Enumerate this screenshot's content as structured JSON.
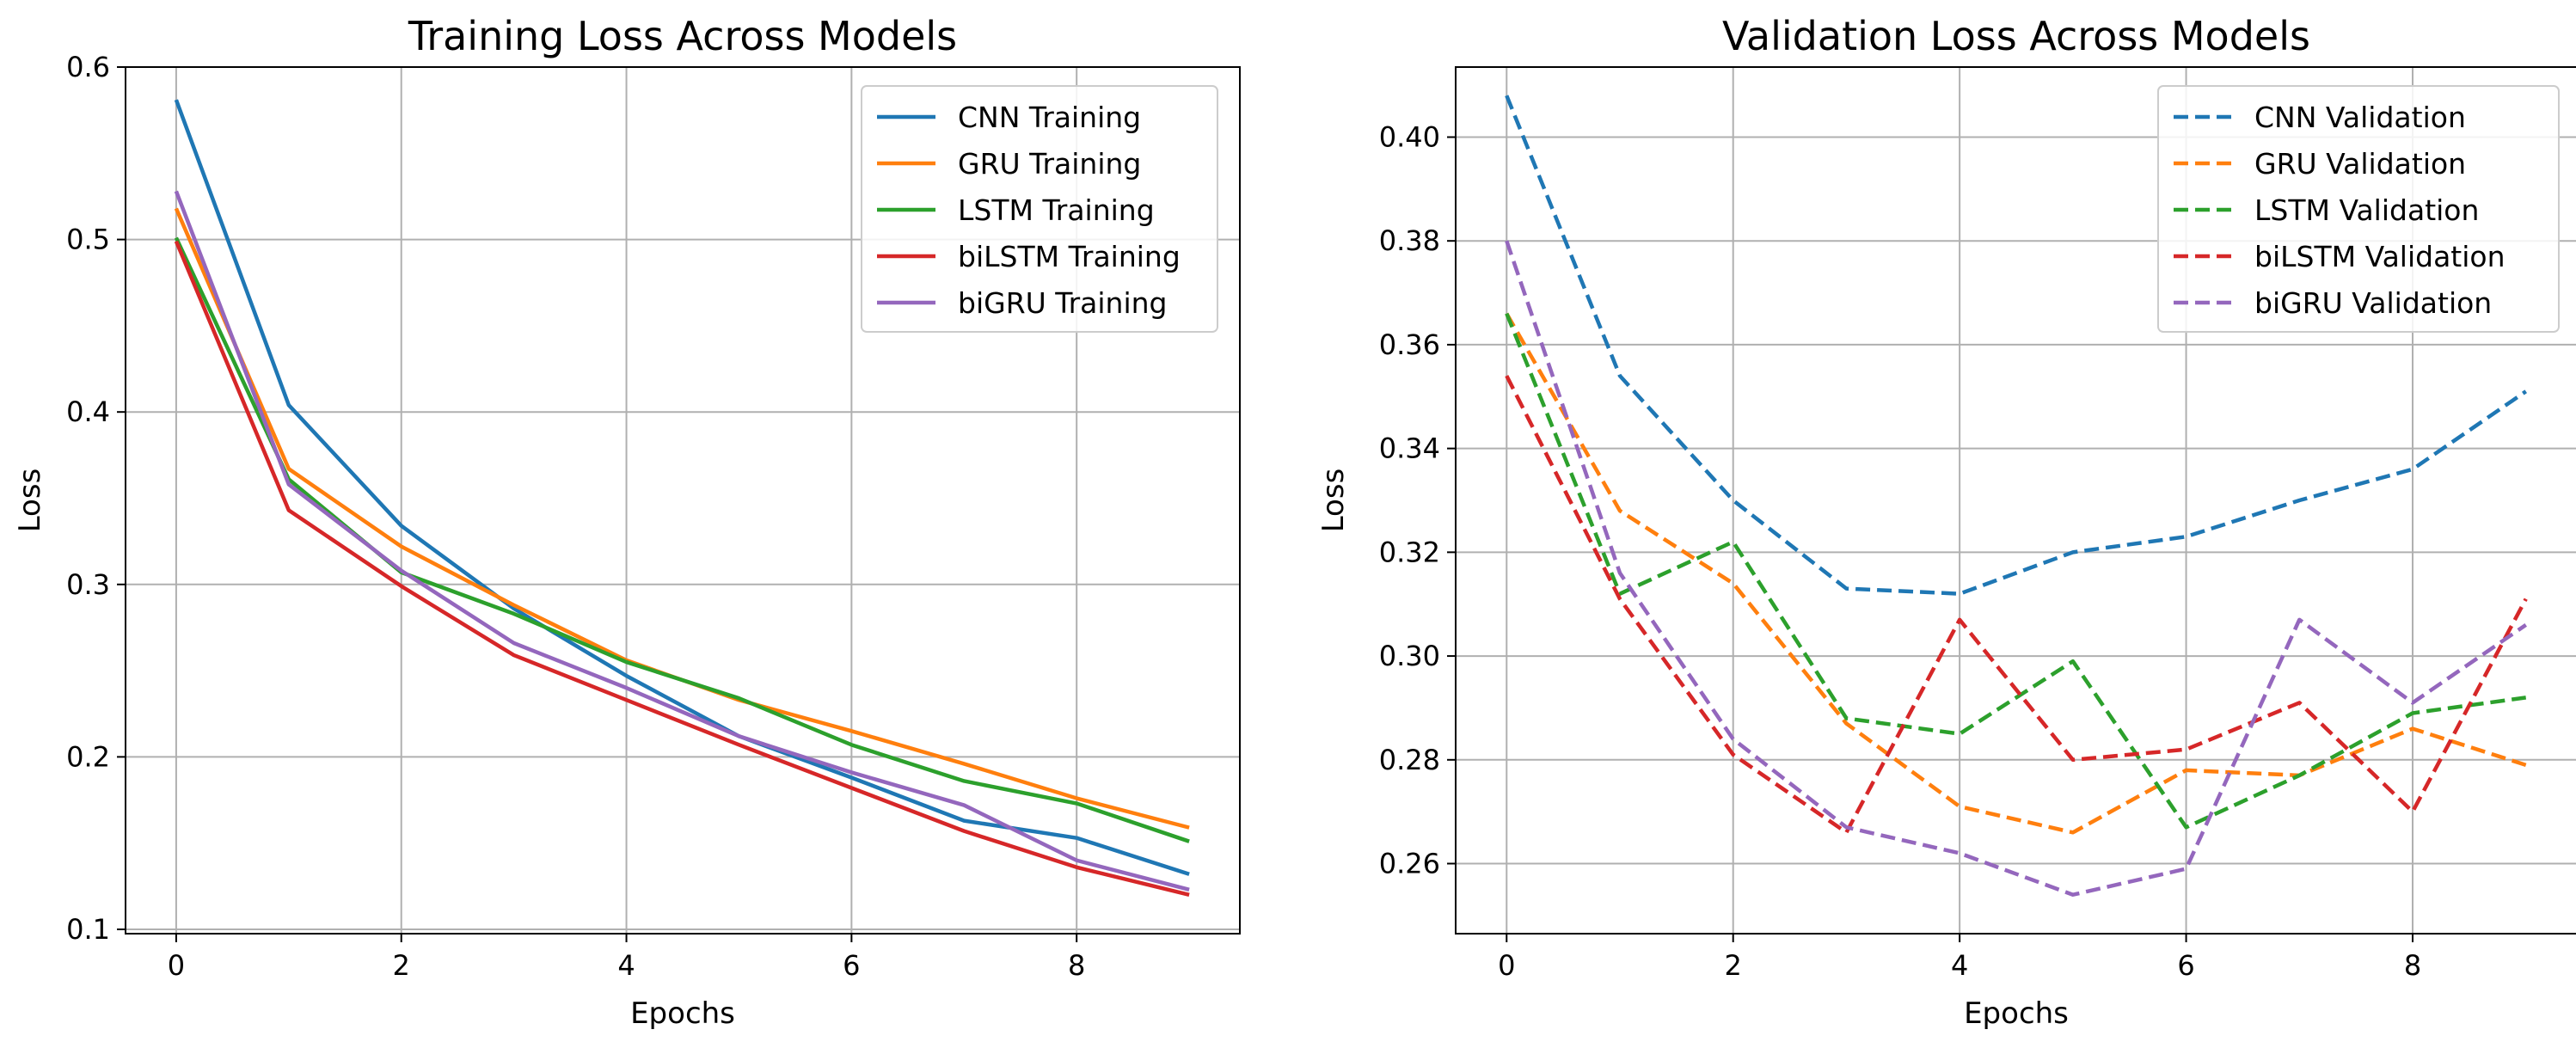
{
  "chart_data": [
    {
      "type": "line",
      "title": "Training Loss Across Models",
      "xlabel": "Epochs",
      "ylabel": "Loss",
      "xlim": [
        -0.45,
        9.45
      ],
      "ylim": [
        0.0975,
        0.6
      ],
      "xticks": [
        0,
        2,
        4,
        6,
        8
      ],
      "xtick_labels": [
        "0",
        "2",
        "4",
        "6",
        "8"
      ],
      "yticks": [
        0.1,
        0.2,
        0.3,
        0.4,
        0.5,
        0.6
      ],
      "ytick_labels": [
        "0.1",
        "0.2",
        "0.3",
        "0.4",
        "0.5",
        "0.6"
      ],
      "grid": true,
      "legend_position": "upper right",
      "x": [
        0,
        1,
        2,
        3,
        4,
        5,
        6,
        7,
        8,
        9
      ],
      "series": [
        {
          "name": "CNN Training",
          "color": "#1f77b4",
          "dash": "solid",
          "values": [
            0.581,
            0.404,
            0.334,
            0.286,
            0.247,
            0.212,
            0.188,
            0.163,
            0.153,
            0.132
          ]
        },
        {
          "name": "GRU Training",
          "color": "#ff7f0e",
          "dash": "solid",
          "values": [
            0.518,
            0.367,
            0.322,
            0.288,
            0.256,
            0.233,
            0.215,
            0.196,
            0.176,
            0.159
          ]
        },
        {
          "name": "LSTM Training",
          "color": "#2ca02c",
          "dash": "solid",
          "values": [
            0.501,
            0.361,
            0.307,
            0.283,
            0.255,
            0.234,
            0.207,
            0.186,
            0.173,
            0.151
          ]
        },
        {
          "name": "biLSTM Training",
          "color": "#d62728",
          "dash": "solid",
          "values": [
            0.499,
            0.343,
            0.299,
            0.259,
            0.233,
            0.207,
            0.182,
            0.157,
            0.136,
            0.12
          ]
        },
        {
          "name": "biGRU Training",
          "color": "#9467bd",
          "dash": "solid",
          "values": [
            0.528,
            0.358,
            0.308,
            0.266,
            0.24,
            0.212,
            0.191,
            0.172,
            0.14,
            0.123
          ]
        }
      ]
    },
    {
      "type": "line",
      "title": "Validation Loss Across Models",
      "xlabel": "Epochs",
      "ylabel": "Loss",
      "xlim": [
        -0.45,
        9.45
      ],
      "ylim": [
        0.2465,
        0.4135
      ],
      "xticks": [
        0,
        2,
        4,
        6,
        8
      ],
      "xtick_labels": [
        "0",
        "2",
        "4",
        "6",
        "8"
      ],
      "yticks": [
        0.26,
        0.28,
        0.3,
        0.32,
        0.34,
        0.36,
        0.38,
        0.4
      ],
      "ytick_labels": [
        "0.26",
        "0.28",
        "0.30",
        "0.32",
        "0.34",
        "0.36",
        "0.38",
        "0.40"
      ],
      "grid": true,
      "legend_position": "upper right",
      "x": [
        0,
        1,
        2,
        3,
        4,
        5,
        6,
        7,
        8,
        9
      ],
      "series": [
        {
          "name": "CNN Validation",
          "color": "#1f77b4",
          "dash": "dashed",
          "values": [
            0.408,
            0.354,
            0.33,
            0.313,
            0.312,
            0.32,
            0.323,
            0.33,
            0.336,
            0.351
          ]
        },
        {
          "name": "GRU Validation",
          "color": "#ff7f0e",
          "dash": "dashed",
          "values": [
            0.366,
            0.328,
            0.314,
            0.287,
            0.271,
            0.266,
            0.278,
            0.277,
            0.286,
            0.279
          ]
        },
        {
          "name": "LSTM Validation",
          "color": "#2ca02c",
          "dash": "dashed",
          "values": [
            0.366,
            0.312,
            0.322,
            0.288,
            0.285,
            0.299,
            0.267,
            0.277,
            0.289,
            0.292
          ]
        },
        {
          "name": "biLSTM Validation",
          "color": "#d62728",
          "dash": "dashed",
          "values": [
            0.354,
            0.311,
            0.281,
            0.266,
            0.307,
            0.28,
            0.282,
            0.291,
            0.27,
            0.311
          ]
        },
        {
          "name": "biGRU Validation",
          "color": "#9467bd",
          "dash": "dashed",
          "values": [
            0.38,
            0.316,
            0.284,
            0.267,
            0.262,
            0.254,
            0.259,
            0.307,
            0.291,
            0.306
          ]
        }
      ]
    }
  ]
}
